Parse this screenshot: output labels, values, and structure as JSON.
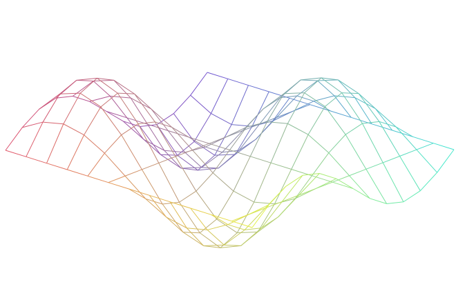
{
  "chart_data": {
    "type": "surface",
    "corner_colors": [
      "#e0506a",
      "#7050d0",
      "#40e8d0",
      "#e8f040"
    ],
    "z": [
      [
        0,
        0.25,
        0.43,
        0.5,
        0.43,
        0.25,
        0,
        -0.25,
        -0.43,
        -0.5,
        -0.43,
        -0.25,
        0
      ],
      [
        0,
        0.43,
        0.76,
        0.87,
        0.76,
        0.43,
        0,
        -0.43,
        -0.76,
        -0.87,
        -0.76,
        -0.43,
        0
      ],
      [
        0,
        0.5,
        0.87,
        1,
        0.87,
        0.5,
        0,
        -0.5,
        -0.87,
        -1,
        -0.87,
        -0.5,
        0
      ],
      [
        0,
        0.43,
        0.76,
        0.87,
        0.76,
        0.43,
        0,
        -0.43,
        -0.76,
        -0.87,
        -0.76,
        -0.43,
        0
      ],
      [
        0,
        0.25,
        0.43,
        0.5,
        0.43,
        0.25,
        0,
        -0.25,
        -0.43,
        -0.5,
        -0.43,
        -0.25,
        0
      ],
      [
        0,
        0,
        0,
        0,
        0,
        0,
        0,
        0,
        0,
        0,
        0,
        0,
        0
      ],
      [
        0,
        -0.25,
        -0.43,
        -0.5,
        -0.43,
        -0.25,
        0,
        0.25,
        0.43,
        0.5,
        0.43,
        0.25,
        0
      ],
      [
        0,
        -0.43,
        -0.76,
        -0.87,
        -0.76,
        -0.43,
        0,
        0.43,
        0.76,
        0.87,
        0.76,
        0.43,
        0
      ],
      [
        0,
        -0.5,
        -0.87,
        -1,
        -0.87,
        -0.5,
        0,
        0.5,
        0.87,
        1,
        0.87,
        0.5,
        0
      ],
      [
        0,
        -0.43,
        -0.76,
        -0.87,
        -0.76,
        -0.43,
        0,
        0.43,
        0.76,
        0.87,
        0.76,
        0.43,
        0
      ],
      [
        0,
        -0.25,
        -0.43,
        -0.5,
        -0.43,
        -0.25,
        0,
        0.25,
        0.43,
        0.5,
        0.43,
        0.25,
        0
      ],
      [
        0,
        0,
        0,
        0,
        0,
        0,
        0,
        0,
        0,
        0,
        0,
        0,
        0
      ],
      [
        0,
        0.25,
        0.43,
        0.5,
        0.43,
        0.25,
        0,
        -0.25,
        -0.43,
        -0.5,
        -0.43,
        -0.25,
        0
      ]
    ]
  }
}
